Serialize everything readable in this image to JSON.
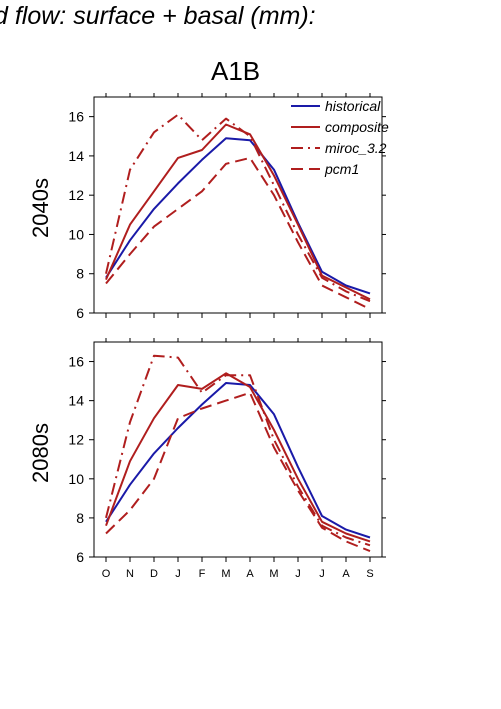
{
  "figure_title": "d flow: surface + basal (mm):",
  "scenario": "A1B",
  "chart_data": [
    {
      "type": "line",
      "panel_label": "2040s",
      "categories": [
        "O",
        "N",
        "D",
        "J",
        "F",
        "M",
        "A",
        "M",
        "J",
        "J",
        "A",
        "S"
      ],
      "ylim": [
        6,
        17
      ],
      "yticks": [
        6,
        8,
        10,
        12,
        14,
        16
      ],
      "legend_position": "top-right",
      "series": [
        {
          "name": "historical",
          "color": "#1a1aa8",
          "style": "solid",
          "values": [
            7.8,
            9.7,
            11.3,
            12.6,
            13.8,
            14.9,
            14.8,
            13.3,
            10.6,
            8.1,
            7.4,
            7.0
          ]
        },
        {
          "name": "composite",
          "color": "#b01e1e",
          "style": "solid",
          "values": [
            7.7,
            10.5,
            12.2,
            13.9,
            14.3,
            15.6,
            15.1,
            13.0,
            10.5,
            7.9,
            7.3,
            6.7
          ]
        },
        {
          "name": "miroc_3.2",
          "color": "#b01e1e",
          "style": "dashdot",
          "values": [
            8.0,
            13.3,
            15.2,
            16.1,
            14.8,
            15.9,
            15.0,
            12.5,
            10.0,
            7.8,
            7.1,
            6.6
          ]
        },
        {
          "name": "pcm1",
          "color": "#b01e1e",
          "style": "dashed",
          "values": [
            7.5,
            9.0,
            10.4,
            11.3,
            12.2,
            13.6,
            13.9,
            12.0,
            9.6,
            7.4,
            6.8,
            6.2
          ]
        }
      ]
    },
    {
      "type": "line",
      "panel_label": "2080s",
      "categories": [
        "O",
        "N",
        "D",
        "J",
        "F",
        "M",
        "A",
        "M",
        "J",
        "J",
        "A",
        "S"
      ],
      "ylim": [
        6,
        17
      ],
      "yticks": [
        6,
        8,
        10,
        12,
        14,
        16
      ],
      "series": [
        {
          "name": "historical",
          "color": "#1a1aa8",
          "style": "solid",
          "values": [
            7.8,
            9.7,
            11.3,
            12.6,
            13.8,
            14.9,
            14.8,
            13.3,
            10.6,
            8.1,
            7.4,
            7.0
          ]
        },
        {
          "name": "composite",
          "color": "#b01e1e",
          "style": "solid",
          "values": [
            7.6,
            10.9,
            13.1,
            14.8,
            14.6,
            15.4,
            14.7,
            12.5,
            10.0,
            7.8,
            7.2,
            6.8
          ]
        },
        {
          "name": "miroc_3.2",
          "color": "#b01e1e",
          "style": "dashdot",
          "values": [
            8.0,
            12.9,
            16.3,
            16.2,
            14.4,
            15.3,
            15.3,
            12.0,
            9.6,
            7.6,
            7.0,
            6.6
          ]
        },
        {
          "name": "pcm1",
          "color": "#b01e1e",
          "style": "dashed",
          "values": [
            7.2,
            8.4,
            10.0,
            13.1,
            13.6,
            14.0,
            14.4,
            11.6,
            9.4,
            7.5,
            6.8,
            6.3
          ]
        }
      ]
    }
  ]
}
